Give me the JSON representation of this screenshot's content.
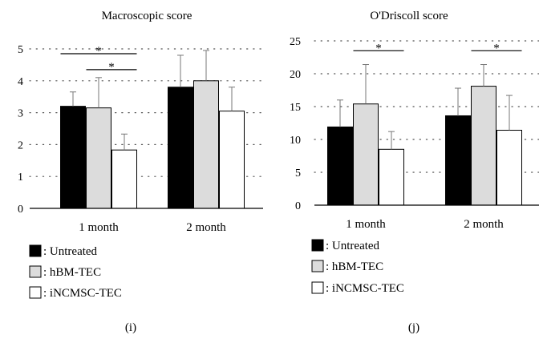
{
  "chart_data": [
    {
      "type": "bar",
      "title": "Macroscopic score",
      "panel_label": "(i)",
      "categories": [
        "1 month",
        "2 month"
      ],
      "ylim": [
        0,
        5
      ],
      "yticks": [
        0,
        1,
        2,
        3,
        4,
        5
      ],
      "grid": "dotted",
      "series": [
        {
          "name": "Untreated",
          "fill": "#000000",
          "values": [
            3.2,
            3.8
          ],
          "errors": [
            0.45,
            1.0
          ]
        },
        {
          "name": "hBM-TEC",
          "fill": "#dcdcdc",
          "values": [
            3.15,
            4.0
          ],
          "errors": [
            0.95,
            0.95
          ]
        },
        {
          "name": "iNCMSC-TEC",
          "fill": "#ffffff",
          "values": [
            1.83,
            3.05
          ],
          "errors": [
            0.5,
            0.75
          ]
        }
      ],
      "significance": [
        {
          "from_category": 0,
          "from_series": 0,
          "to_category": 0,
          "to_series": 2,
          "label": "*",
          "y": 4.85
        },
        {
          "from_category": 0,
          "from_series": 1,
          "to_category": 0,
          "to_series": 2,
          "label": "*",
          "y": 4.35
        }
      ],
      "legend": [
        {
          "marker": "#000000",
          "label": ": Untreated"
        },
        {
          "marker": "#dcdcdc",
          "label": ": hBM-TEC"
        },
        {
          "marker": "#ffffff",
          "label": ": iNCMSC-TEC"
        }
      ]
    },
    {
      "type": "bar",
      "title": "O'Driscoll score",
      "panel_label": "(j)",
      "categories": [
        "1 month",
        "2 month"
      ],
      "ylim": [
        0,
        25
      ],
      "yticks": [
        0,
        5,
        10,
        15,
        20,
        25
      ],
      "grid": "dotted",
      "series": [
        {
          "name": "Untreated",
          "fill": "#000000",
          "values": [
            11.9,
            13.6
          ],
          "errors": [
            4.1,
            4.2
          ]
        },
        {
          "name": "hBM-TEC",
          "fill": "#dcdcdc",
          "values": [
            15.4,
            18.1
          ],
          "errors": [
            6.0,
            3.3
          ]
        },
        {
          "name": "iNCMSC-TEC",
          "fill": "#ffffff",
          "values": [
            8.5,
            11.4
          ],
          "errors": [
            2.7,
            5.3
          ]
        }
      ],
      "significance": [
        {
          "from_category": 0,
          "from_series": 1,
          "to_category": 0,
          "to_series": 2,
          "label": "*",
          "y": 23.5
        },
        {
          "from_category": 1,
          "from_series": 1,
          "to_category": 1,
          "to_series": 2,
          "label": "*",
          "y": 23.5
        }
      ],
      "legend": [
        {
          "marker": "#000000",
          "label": ": Untreated"
        },
        {
          "marker": "#dcdcdc",
          "label": ": hBM-TEC"
        },
        {
          "marker": "#ffffff",
          "label": ": iNCMSC-TEC"
        }
      ]
    }
  ]
}
